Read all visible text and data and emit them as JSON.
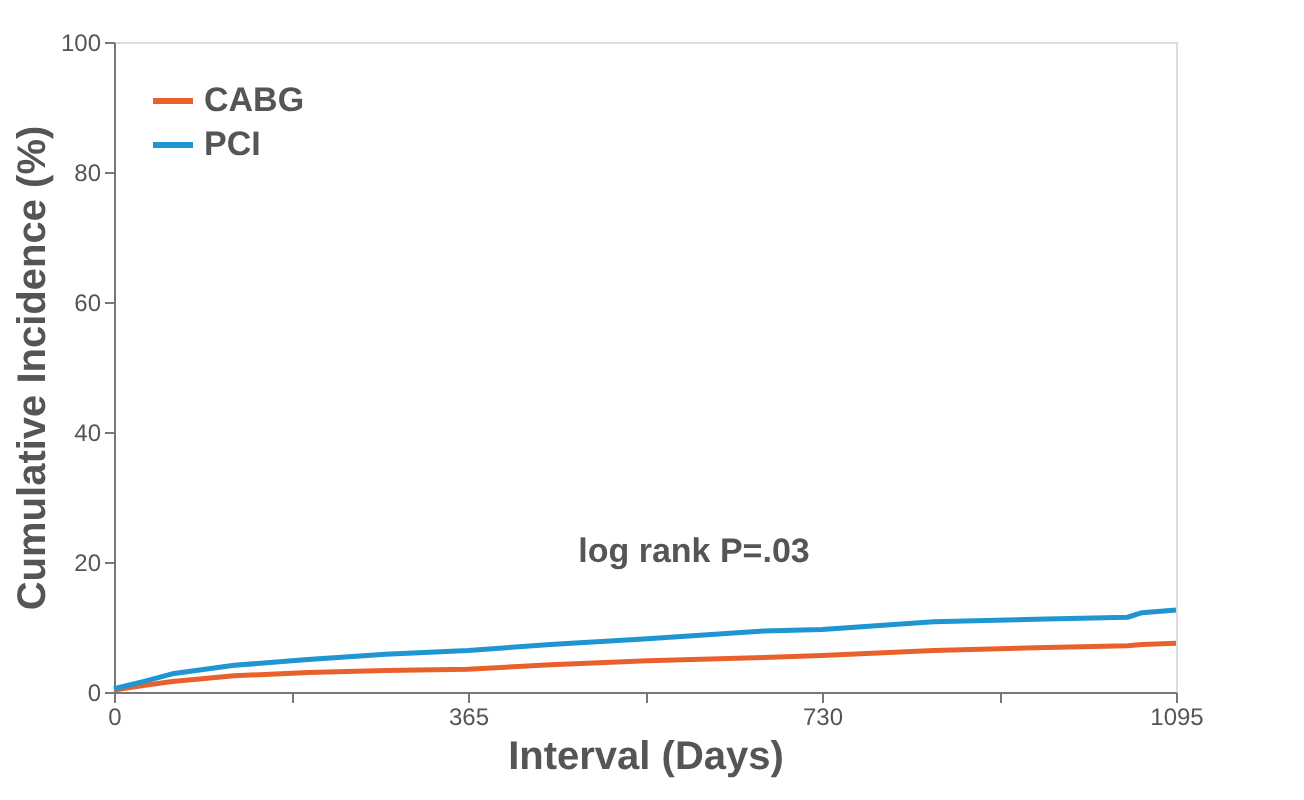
{
  "chart_data": {
    "type": "line",
    "xlabel": "Interval (Days)",
    "ylabel": "Cumulative Incidence (%)",
    "x": [
      0,
      30,
      60,
      124,
      200,
      280,
      365,
      450,
      550,
      670,
      730,
      845,
      950,
      1045,
      1060,
      1095
    ],
    "series": [
      {
        "name": "CABG",
        "color": "#e8612c",
        "values": [
          0.3,
          1.0,
          1.6,
          2.5,
          3.0,
          3.3,
          3.5,
          4.2,
          4.8,
          5.3,
          5.6,
          6.4,
          6.8,
          7.1,
          7.3,
          7.5
        ]
      },
      {
        "name": "PCI",
        "color": "#1f95d2",
        "values": [
          0.5,
          1.6,
          2.8,
          4.1,
          5.0,
          5.8,
          6.4,
          7.3,
          8.2,
          9.4,
          9.6,
          10.8,
          11.2,
          11.5,
          12.2,
          12.6
        ]
      }
    ],
    "xlim": [
      0,
      1095
    ],
    "xticks": [
      0,
      {
        "value": 182.5,
        "label": null
      },
      365,
      {
        "value": 547.5,
        "label": null
      },
      730,
      {
        "value": 912.5,
        "label": null
      },
      1095
    ],
    "ylim": [
      0,
      100
    ],
    "yticks": [
      0,
      20,
      40,
      60,
      80,
      100
    ],
    "annotations": [
      "log rank P=.03"
    ],
    "legend": "top left",
    "grid": false,
    "line_style": "solid",
    "marker": "none"
  }
}
